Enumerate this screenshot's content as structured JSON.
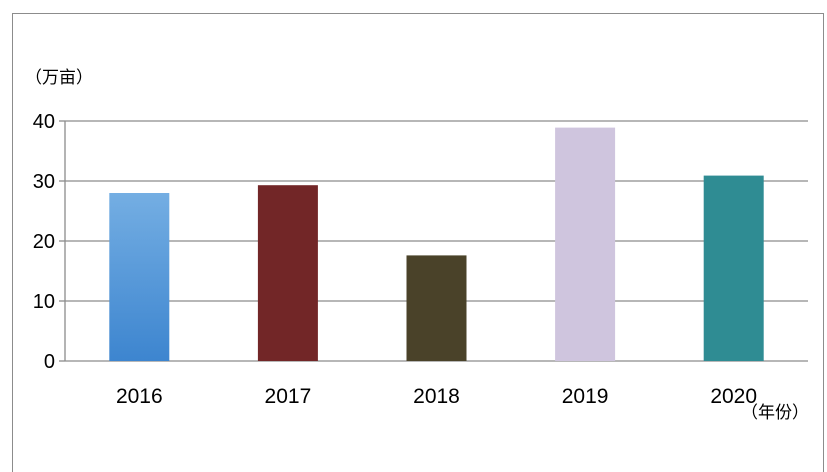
{
  "chart_data": {
    "type": "bar",
    "ylabel": "（万亩）",
    "xlabel": "（年份）",
    "categories": [
      "2016",
      "2017",
      "2018",
      "2019",
      "2020"
    ],
    "values": [
      28,
      29.3,
      17.6,
      38.9,
      30.9
    ],
    "colors": [
      "#4a90d6",
      "#722627",
      "#4a4229",
      "#cfc5de",
      "#2f8c93"
    ],
    "ylim": [
      0,
      40
    ],
    "yticks": [
      0,
      10,
      20,
      30,
      40
    ],
    "grid": true
  }
}
